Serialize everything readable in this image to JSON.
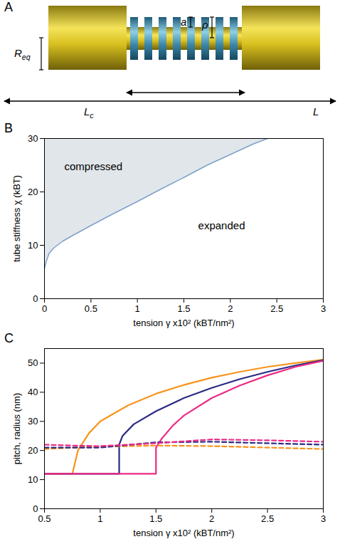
{
  "diagram": {
    "panel": "A",
    "labels": {
      "a": "a",
      "rho": "ρ",
      "radius": {
        "base": "R",
        "sub": "eq"
      },
      "contour_length": {
        "base": "L",
        "sub": "c"
      },
      "length": "L"
    }
  },
  "chart_data": [
    {
      "panel": "B",
      "type": "area",
      "x_label": "tension γ x10² (kBT/nm²)",
      "y_label": "tube stiffness χ (kBT)",
      "annotations": [
        "compressed",
        "expanded"
      ],
      "x": [
        0,
        0.02,
        0.05,
        0.1,
        0.2,
        0.3,
        0.5,
        0.75,
        1.0,
        1.25,
        1.5,
        1.75,
        2.0,
        2.25,
        2.4
      ],
      "values": [
        5.6,
        7,
        8.5,
        9.5,
        10.8,
        11.8,
        13.7,
        16,
        18.2,
        20.5,
        22.7,
        25,
        27,
        29,
        30
      ],
      "color": "#7c9fc9",
      "xlim": [
        0,
        3
      ],
      "xticks": [
        0,
        0.5,
        1,
        1.5,
        2,
        2.5,
        3
      ],
      "ylim": [
        0,
        30
      ],
      "yticks": [
        0,
        10,
        20,
        30
      ],
      "grid": false
    },
    {
      "panel": "C",
      "type": "line",
      "x_label": "tension γ x10² (kBT/nm²)",
      "y_label": "pitch, radius (nm)",
      "series": [
        {
          "color": "#f7941d",
          "line_style": "solid",
          "x": [
            0.5,
            0.75,
            0.8,
            0.9,
            1.0,
            1.25,
            1.5,
            1.75,
            2.0,
            2.25,
            2.5,
            2.75,
            3.0
          ],
          "values": [
            12,
            12,
            20,
            26,
            30,
            35.5,
            39.5,
            42.5,
            45,
            47,
            48.7,
            50,
            51.2
          ]
        },
        {
          "color": "#2b2a84",
          "line_style": "solid",
          "x": [
            0.5,
            1.17,
            1.17,
            1.2,
            1.3,
            1.5,
            1.75,
            2.0,
            2.25,
            2.5,
            2.75,
            3.0
          ],
          "values": [
            12,
            12,
            22,
            25,
            29,
            33.5,
            38,
            41.5,
            44.5,
            47,
            49.2,
            51
          ]
        },
        {
          "color": "#ec2a85",
          "line_style": "solid",
          "x": [
            0.5,
            1.5,
            1.5,
            1.55,
            1.65,
            1.75,
            2.0,
            2.25,
            2.5,
            2.75,
            3.0
          ],
          "values": [
            12,
            12,
            21,
            24,
            28.5,
            32,
            38,
            42.3,
            45.8,
            48.7,
            50.8
          ]
        },
        {
          "color": "#f7941d",
          "line_style": "dashed",
          "x": [
            0.5,
            0.75,
            1.0,
            1.5,
            2.0,
            2.5,
            3.0
          ],
          "values": [
            20.5,
            21,
            21.3,
            21.7,
            21.5,
            21,
            20.5
          ]
        },
        {
          "color": "#2b2a84",
          "line_style": "dashed",
          "x": [
            0.5,
            0.75,
            1.0,
            1.5,
            2.0,
            2.5,
            3.0
          ],
          "values": [
            21,
            21,
            21,
            22.8,
            23,
            22.5,
            22
          ]
        },
        {
          "color": "#ec2a85",
          "line_style": "dashed",
          "x": [
            0.5,
            0.75,
            1.0,
            1.5,
            2.0,
            2.5,
            3.0
          ],
          "values": [
            22,
            21.7,
            21.5,
            22.5,
            23.8,
            23.5,
            23
          ]
        }
      ],
      "xlim": [
        0.5,
        3
      ],
      "xticks": [
        0.5,
        1,
        1.5,
        2,
        2.5,
        3
      ],
      "ylim": [
        0,
        55
      ],
      "yticks": [
        0,
        10,
        20,
        30,
        40,
        50
      ],
      "grid": false
    }
  ]
}
